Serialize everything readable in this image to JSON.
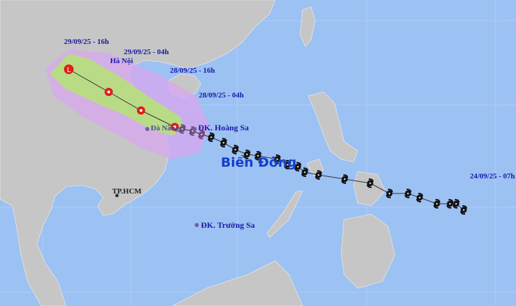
{
  "map": {
    "colors": {
      "ocean": "#9cc1f3",
      "land": "#c6c6c6",
      "cone_outer": "#d7a8ee",
      "cone_inner": "#b6e07a",
      "track": "#333333",
      "storm_current": "#e0201c",
      "storm_past": "#111111"
    },
    "labels": {
      "t_29_16h": "29/09/25 - 16h",
      "t_29_04h": "29/09/25 - 04h",
      "t_28_16h": "28/09/25 - 16h",
      "t_28_04h": "28/09/25 - 04h",
      "t_24_07h": "24/09/25 - 07h",
      "hanoi": "Hà Nội",
      "danang": "Đà Nẵng",
      "hoangsa": "ĐK. Hoàng Sa",
      "truongsa": "ĐK. Trường Sa",
      "tphcm": "TP.HCM",
      "sea": "Biển Đông"
    },
    "forecast_marker_low": "L",
    "icons": [
      "tropical-storm-icon",
      "low-pressure-icon",
      "city-dot-icon"
    ]
  }
}
